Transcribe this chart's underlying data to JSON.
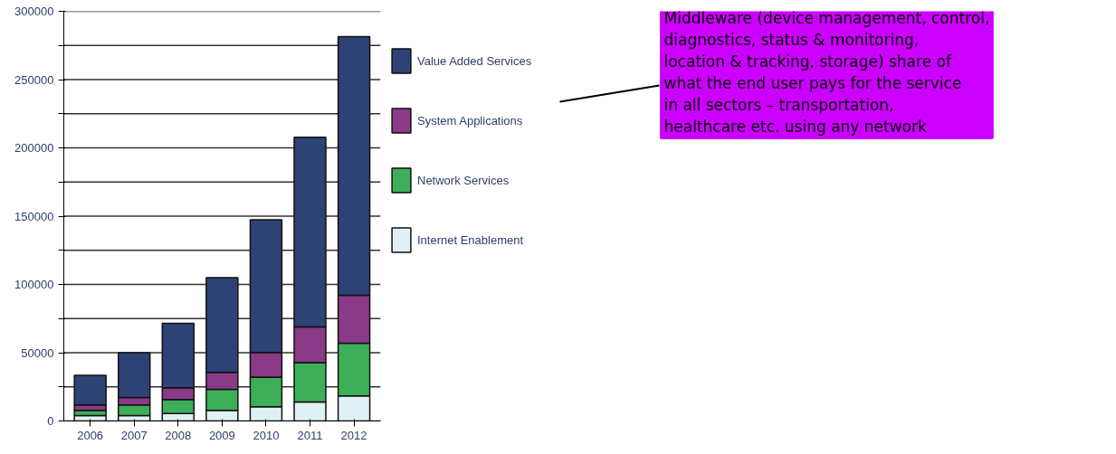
{
  "chart_data": {
    "type": "bar",
    "stacked": true,
    "categories": [
      "2006",
      "2007",
      "2008",
      "2009",
      "2010",
      "2011",
      "2012"
    ],
    "series": [
      {
        "name": "Internet Enablement",
        "color": "#dff1f5",
        "values": [
          4000,
          4000,
          5500,
          7700,
          10400,
          13900,
          18400
        ]
      },
      {
        "name": "Network Services",
        "color": "#3dae5a",
        "values": [
          3800,
          7700,
          10200,
          15500,
          21700,
          28800,
          38500
        ]
      },
      {
        "name": "System Applications",
        "color": "#8a3a86",
        "values": [
          3900,
          5600,
          8600,
          12400,
          18100,
          26100,
          35100
        ]
      },
      {
        "name": "Value Added Services",
        "color": "#2e4375",
        "values": [
          21700,
          32700,
          47200,
          69400,
          97200,
          139000,
          189400
        ]
      }
    ],
    "ylim": [
      0,
      300000
    ],
    "yticks": [
      0,
      {
        "value": 25000,
        "label": null
      },
      50000,
      {
        "value": 75000,
        "label": null
      },
      100000,
      {
        "value": 125000,
        "label": null
      },
      150000,
      {
        "value": 175000,
        "label": null
      },
      200000,
      {
        "value": 225000,
        "label": null
      },
      250000,
      {
        "value": 275000,
        "label": null
      },
      300000
    ],
    "grid": "y",
    "legend": "right",
    "annotations": [
      "Middleware (device management, control, diagnostics, status & monitoring, location & tracking, storage)  share of what the end user pays for the service in all sectors – transportation, healthcare etc. using any network"
    ]
  }
}
